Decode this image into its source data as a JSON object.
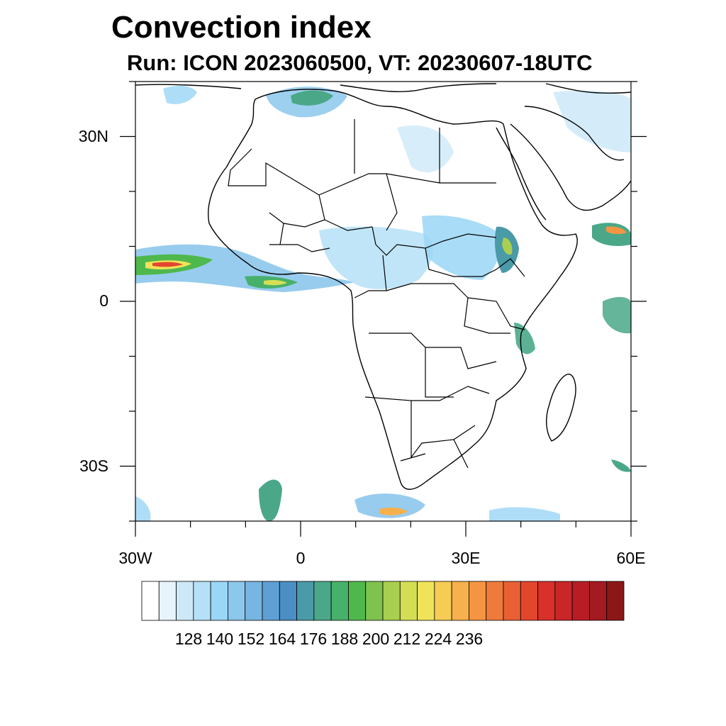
{
  "header": {
    "title": "Convection index",
    "subtitle": "Run: ICON 2023060500,  VT: 20230607-18UTC"
  },
  "axes": {
    "y_labels": [
      {
        "text": "30N",
        "lat": 30
      },
      {
        "text": "0",
        "lat": 0
      },
      {
        "text": "30S",
        "lat": -30
      }
    ],
    "x_labels": [
      {
        "text": "30W",
        "lon": -30
      },
      {
        "text": "0",
        "lon": 0
      },
      {
        "text": "30E",
        "lon": 30
      },
      {
        "text": "60E",
        "lon": 60
      }
    ],
    "lon_range": [
      -30,
      60
    ],
    "lat_range": [
      -40,
      40
    ]
  },
  "colorbar": {
    "labels": [
      "128",
      "140",
      "152",
      "164",
      "176",
      "188",
      "200",
      "212",
      "224",
      "236"
    ],
    "colors": [
      "#ffffff",
      "#e8f4fc",
      "#cde9f8",
      "#b5e0f7",
      "#9ad6f5",
      "#8cc7ec",
      "#78b5e2",
      "#5f9fd4",
      "#4a8ec4",
      "#4a9aa8",
      "#4aa888",
      "#47b06a",
      "#4fb84d",
      "#7fc24e",
      "#a9cf50",
      "#d4de55",
      "#efe35a",
      "#f6cc55",
      "#f6b04c",
      "#f49544",
      "#ee7a3c",
      "#e86034",
      "#e2472e",
      "#d8302a",
      "#c82628",
      "#b81d26",
      "#a41a22",
      "#8c1717"
    ]
  },
  "chart_data": {
    "type": "heatmap",
    "title": "Convection index",
    "subtitle": "Run: ICON 2023060500,  VT: 20230607-18UTC",
    "region": {
      "lon": [
        -30,
        60
      ],
      "lat": [
        -40,
        40
      ]
    },
    "color_scale_labels": [
      128,
      140,
      152,
      164,
      176,
      188,
      200,
      212,
      224,
      236
    ],
    "notes": "Highest values (~212-236) in the tropical Atlantic near 5N, 25W-20W; moderate values over the Gulf of Guinea, Ethiopian highlands, Arabian Sea and southern Atlantic edge."
  }
}
